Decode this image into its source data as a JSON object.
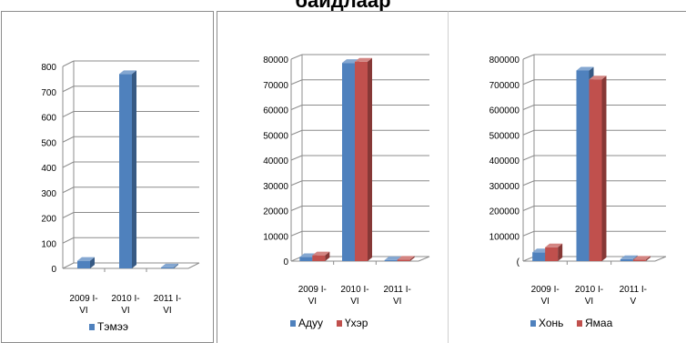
{
  "page": {
    "title": "байдлаар"
  },
  "chart_data": [
    {
      "type": "bar",
      "categories": [
        "2009 I-VI",
        "2010 I-VI",
        "2011 I-VI"
      ],
      "category_lines": [
        [
          "2009 I-",
          "VI"
        ],
        [
          "2010 I-",
          "VI"
        ],
        [
          "2011 I-",
          "VI"
        ]
      ],
      "series": [
        {
          "name": "Тэмээ",
          "values": [
            30,
            770,
            4
          ],
          "color": "#4f81bd"
        }
      ],
      "yticks": [
        0,
        100,
        200,
        300,
        400,
        500,
        600,
        700,
        800
      ],
      "ytick_labels": [
        "0",
        "100",
        "200",
        "300",
        "400",
        "500",
        "600",
        "700",
        "800"
      ],
      "ylim": [
        0,
        800
      ],
      "grid": true,
      "style": "3d-column",
      "legend": "bottom"
    },
    {
      "type": "bar",
      "categories": [
        "2009 I-VI",
        "2010 I-VI",
        "2011 I-VI"
      ],
      "category_lines": [
        [
          "2009 I-",
          "VI"
        ],
        [
          "2010 I-",
          "VI"
        ],
        [
          "2011 I-",
          "VI"
        ]
      ],
      "series": [
        {
          "name": "Адуу",
          "values": [
            1600,
            78500,
            400
          ],
          "color": "#4f81bd"
        },
        {
          "name": "Үхэр",
          "values": [
            2300,
            79000,
            600
          ],
          "color": "#c0504d"
        }
      ],
      "yticks": [
        0,
        10000,
        20000,
        30000,
        40000,
        50000,
        60000,
        70000,
        80000
      ],
      "ytick_labels": [
        "0",
        "10000",
        "20000",
        "30000",
        "40000",
        "50000",
        "60000",
        "70000",
        "80000"
      ],
      "ylim": [
        0,
        80000
      ],
      "grid": true,
      "style": "3d-column",
      "legend": "bottom"
    },
    {
      "type": "bar",
      "categories": [
        "2009 I-VI",
        "2010 I-VI",
        "2011 I-V"
      ],
      "category_lines": [
        [
          "2009 I-",
          "VI"
        ],
        [
          "2010 I-",
          "VI"
        ],
        [
          "2011 I-",
          "V"
        ]
      ],
      "series": [
        {
          "name": "Хонь",
          "values": [
            35000,
            755000,
            8000
          ],
          "color": "#4f81bd"
        },
        {
          "name": "Ямаа",
          "values": [
            55000,
            720000,
            6000
          ],
          "color": "#c0504d"
        }
      ],
      "yticks": [
        0,
        100000,
        200000,
        300000,
        400000,
        500000,
        600000,
        700000,
        800000
      ],
      "ytick_labels": [
        "(",
        "100000",
        "200000",
        "300000",
        "400000",
        "500000",
        "600000",
        "700000",
        "800000"
      ],
      "ylim": [
        0,
        800000
      ],
      "grid": true,
      "style": "3d-column",
      "legend": "bottom"
    }
  ]
}
